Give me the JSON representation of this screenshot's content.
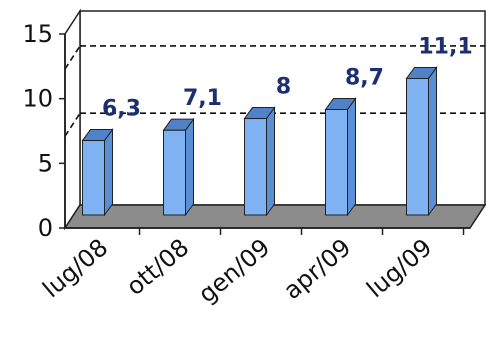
{
  "chart_data": {
    "type": "bar",
    "categories": [
      "lug/08",
      "ott/08",
      "gen/09",
      "apr/09",
      "lug/09"
    ],
    "values": [
      6.3,
      7.1,
      8,
      8.7,
      11.1
    ],
    "value_labels": [
      "6,3",
      "7,1",
      "8",
      "8,7",
      "11,1"
    ],
    "ylim": [
      0,
      15
    ],
    "yticks": [
      0,
      5,
      10,
      15
    ],
    "gridlines_dashed": [
      7.1,
      12.3
    ],
    "three_d": true,
    "legend": "none",
    "colors": {
      "bar_front": "#7fb2f2",
      "bar_top": "#4f82c8",
      "bar_side": "#5a8fd6",
      "floor": "#8c8c8c",
      "wall": "#ffffff",
      "edge": "#222222",
      "data_label": "#1c2f6e"
    }
  }
}
